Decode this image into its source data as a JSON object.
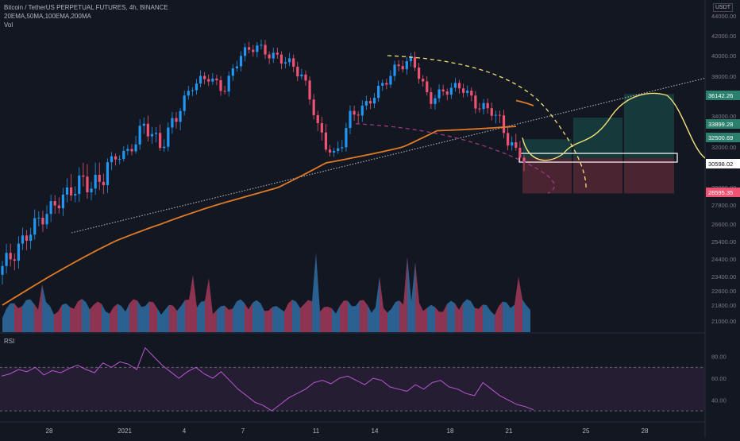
{
  "header": {
    "title": "Bitcoin / TetherUS PERPETUAL FUTURES, 4h, BINANCE",
    "indicators": "20EMA,50MA,100EMA,200MA",
    "volume_label": "Vol",
    "currency": "USDT"
  },
  "rsi_panel": {
    "label": "RSI"
  },
  "colors": {
    "background": "#131722",
    "up": "#2196f3",
    "down": "#ef5373",
    "ma": "#e07a27",
    "projection": "#f5e07a",
    "projection_dashed_fall": "#ef5373",
    "rsi_line": "#ba55d3",
    "rsi_band": "#2a2038",
    "long_profit_zone": "#163a3b",
    "long_stop_zone": "#4a2430",
    "price_box": "#ffffff",
    "grid": "#1f2433"
  },
  "chart_data": [
    {
      "type": "candlestick",
      "title": "Bitcoin / TetherUS PERPETUAL FUTURES, 4h, BINANCE",
      "x_ticks": [
        "28",
        "2021",
        "4",
        "7",
        "11",
        "14",
        "18",
        "21",
        "25",
        "28"
      ],
      "y_ticks": [
        21000,
        21800,
        22600,
        23400,
        24400,
        25400,
        26600,
        27800,
        29000,
        30000,
        32000,
        34000,
        36000,
        38000,
        40000,
        42000,
        44000
      ],
      "y_range": [
        20500,
        44800
      ],
      "price_labels": [
        {
          "value": "36142.26",
          "color": "#2a7f6d"
        },
        {
          "value": "33899.28",
          "color": "#2a7f6d"
        },
        {
          "value": "32500.69",
          "color": "#2a7f6d"
        },
        {
          "value": "30598.02",
          "color": "#ffffff"
        },
        {
          "value": "28595.35",
          "color": "#ef5373"
        }
      ],
      "long_position": {
        "entry": 30598,
        "targets": [
          32500.69,
          33899.28,
          36142.26
        ],
        "stop": 28595.35
      },
      "projection_path": [
        30600,
        30400,
        31200,
        32600,
        33600,
        35500,
        36400,
        36000,
        34000,
        31000
      ],
      "trendline_from": 26000,
      "trendline_to": 37800,
      "ohlc_samples_close": [
        24000,
        25000,
        26500,
        27500,
        28500,
        29200,
        29000,
        30500,
        31500,
        33500,
        32000,
        34000,
        37000,
        38000,
        36500,
        40000,
        41000,
        40000,
        39500,
        38000,
        33000,
        31000,
        34000,
        35000,
        37000,
        39000,
        39500,
        35500,
        36500,
        37000,
        35000,
        34500,
        32500,
        30500
      ],
      "series": [
        {
          "name": "Vol",
          "type": "area"
        }
      ]
    },
    {
      "type": "line",
      "title": "RSI",
      "y_ticks": [
        40,
        60,
        80
      ],
      "band": [
        30,
        70
      ],
      "values": [
        62,
        64,
        68,
        66,
        70,
        63,
        67,
        65,
        69,
        72,
        68,
        65,
        74,
        70,
        75,
        73,
        68,
        88,
        80,
        72,
        66,
        60,
        66,
        70,
        64,
        60,
        66,
        58,
        50,
        44,
        38,
        35,
        30,
        36,
        42,
        46,
        50,
        56,
        58,
        55,
        60,
        62,
        58,
        54,
        60,
        58,
        52,
        50,
        48,
        54,
        50,
        56,
        58,
        52,
        50,
        46,
        44,
        56,
        50,
        44,
        40,
        36,
        34,
        31
      ]
    }
  ]
}
